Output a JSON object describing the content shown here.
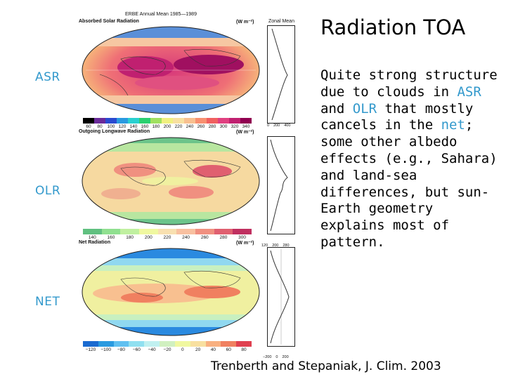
{
  "slide": {
    "title": "Radiation TOA",
    "row_labels": [
      "ASR",
      "OLR",
      "NET"
    ],
    "body_segments": [
      {
        "text": "Quite strong structure due to clouds in ",
        "highlight": false
      },
      {
        "text": "ASR",
        "highlight": true
      },
      {
        "text": " and ",
        "highlight": false
      },
      {
        "text": "OLR",
        "highlight": true
      },
      {
        "text": " that mostly cancels in the ",
        "highlight": false
      },
      {
        "text": "net",
        "highlight": true
      },
      {
        "text": "; some other albedo effects (e.g., Sahara) and land-sea differences, but  sun-Earth geometry explains most of pattern.",
        "highlight": false
      }
    ],
    "citation": "Trenberth and Stepaniak, J. Clim. 2003",
    "highlight_color": "#3399cc"
  },
  "figure": {
    "header": "ERBE Annual Mean 1985—1989",
    "zonal_header": "Zonal Mean",
    "panels": [
      {
        "title": "Absorbed Solar Radiation",
        "units": "(W m⁻²)",
        "colorbar_ticks": [
          "60",
          "80",
          "100",
          "120",
          "140",
          "160",
          "180",
          "200",
          "220",
          "240",
          "260",
          "280",
          "300",
          "320",
          "340"
        ],
        "colorbar_colors": [
          "#000000",
          "#6a2a9a",
          "#2a4ad0",
          "#2a9ae0",
          "#2ad0d0",
          "#2ad070",
          "#a0e060",
          "#f0f080",
          "#f8e0a0",
          "#f8c090",
          "#f89070",
          "#f06060",
          "#e04080",
          "#c02070",
          "#900050"
        ],
        "zonal_ticks": [
          "0",
          "200",
          "400"
        ]
      },
      {
        "title": "Outgoing Longwave Radiation",
        "units": "(W m⁻²)",
        "colorbar_ticks": [
          "140",
          "160",
          "180",
          "200",
          "220",
          "240",
          "260",
          "280",
          "300"
        ],
        "colorbar_colors": [
          "#60c080",
          "#90e090",
          "#c0f0a0",
          "#f0f8a0",
          "#f8e0b0",
          "#f8c0a0",
          "#f09080",
          "#e06070",
          "#c03060"
        ],
        "zonal_ticks": [
          "120",
          "200",
          "280"
        ]
      },
      {
        "title": "Net Radiation",
        "units": "(W m⁻²)",
        "colorbar_ticks": [
          "−120",
          "−100",
          "−80",
          "−60",
          "−40",
          "−20",
          "0",
          "20",
          "40",
          "60",
          "80"
        ],
        "colorbar_colors": [
          "#1a6ad0",
          "#2a9ae0",
          "#60c0f0",
          "#90e0f0",
          "#c0f0f0",
          "#d0f0c0",
          "#f0f8a0",
          "#f8e0a0",
          "#f8b080",
          "#f08060",
          "#e04050"
        ],
        "zonal_ticks": [
          "−200",
          "0",
          "200"
        ]
      }
    ]
  }
}
